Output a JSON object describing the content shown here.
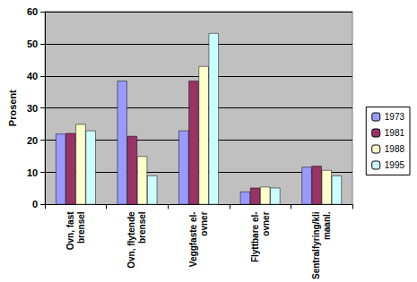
{
  "chart_data": {
    "type": "bar",
    "y_label": "Prosent",
    "categories": [
      "Ovn, fast\nbrensel",
      "Ovn, flytende\nbrensel",
      "Veggfaste el-\novner",
      "Flyttbare el-\novner",
      "Sentralfyring/kli\nmaanl."
    ],
    "series": [
      {
        "name": "1973",
        "color": "#9999ff",
        "values": [
          22,
          38.5,
          23,
          4,
          11.7
        ]
      },
      {
        "name": "1981",
        "color": "#993366",
        "values": [
          22.2,
          21.3,
          38.5,
          5.2,
          12
        ]
      },
      {
        "name": "1988",
        "color": "#ffffcc",
        "values": [
          25,
          15,
          43,
          5.5,
          10.7
        ]
      },
      {
        "name": "1995",
        "color": "#ccffff",
        "values": [
          23,
          9,
          53.3,
          5.2,
          9
        ]
      }
    ],
    "ylim": [
      0,
      60
    ],
    "yticks": [
      0,
      10,
      20,
      30,
      40,
      50,
      60
    ],
    "grid": true,
    "legend": "right"
  }
}
